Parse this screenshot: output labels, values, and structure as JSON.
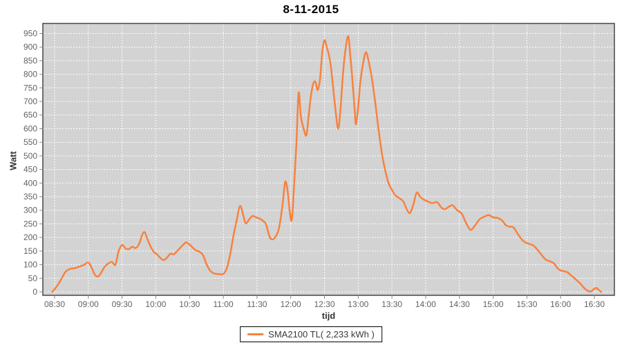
{
  "title": "8-11-2015",
  "colors": {
    "series": "#f8813e",
    "plot_background": "#d3d3d3",
    "gridline": "#ffffff",
    "plot_border": "#3a3a3a",
    "tick_mark": "#8a8a8a",
    "tick_label": "#616161",
    "axis_title": "#333333",
    "legend_border": "#000000",
    "legend_background": "#ffffff"
  },
  "chart_data": {
    "type": "line",
    "title": "8-11-2015",
    "xlabel": "tijd",
    "ylabel": "Watt",
    "grid": true,
    "legend_position": "bottom",
    "ylim": [
      0,
      950
    ],
    "y_axis": {
      "min": 0,
      "max": 950,
      "step": 50
    },
    "x_ticks": [
      "08:30",
      "09:00",
      "09:30",
      "10:00",
      "10:30",
      "11:00",
      "11:30",
      "12:00",
      "12:30",
      "13:00",
      "13:30",
      "14:00",
      "14:30",
      "15:00",
      "15:30",
      "16:00",
      "16:30"
    ],
    "series": [
      {
        "name": "SMA2100 TL( 2,233 kWh )",
        "color": "#f8813e",
        "points": [
          [
            "08:28",
            0
          ],
          [
            "08:31",
            15
          ],
          [
            "08:34",
            33
          ],
          [
            "08:37",
            55
          ],
          [
            "08:40",
            75
          ],
          [
            "08:44",
            85
          ],
          [
            "08:48",
            87
          ],
          [
            "08:52",
            93
          ],
          [
            "08:56",
            99
          ],
          [
            "09:00",
            108
          ],
          [
            "09:03",
            88
          ],
          [
            "09:06",
            62
          ],
          [
            "09:09",
            57
          ],
          [
            "09:12",
            75
          ],
          [
            "09:15",
            95
          ],
          [
            "09:18",
            105
          ],
          [
            "09:21",
            110
          ],
          [
            "09:24",
            100
          ],
          [
            "09:27",
            150
          ],
          [
            "09:30",
            172
          ],
          [
            "09:33",
            160
          ],
          [
            "09:36",
            157
          ],
          [
            "09:39",
            166
          ],
          [
            "09:42",
            161
          ],
          [
            "09:45",
            175
          ],
          [
            "09:48",
            210
          ],
          [
            "09:50",
            220
          ],
          [
            "09:52",
            200
          ],
          [
            "09:55",
            170
          ],
          [
            "09:58",
            148
          ],
          [
            "10:01",
            138
          ],
          [
            "10:04",
            125
          ],
          [
            "10:07",
            117
          ],
          [
            "10:10",
            126
          ],
          [
            "10:13",
            140
          ],
          [
            "10:16",
            138
          ],
          [
            "10:19",
            150
          ],
          [
            "10:22",
            163
          ],
          [
            "10:25",
            176
          ],
          [
            "10:27",
            182
          ],
          [
            "10:30",
            174
          ],
          [
            "10:33",
            162
          ],
          [
            "10:36",
            152
          ],
          [
            "10:39",
            147
          ],
          [
            "10:42",
            135
          ],
          [
            "10:45",
            103
          ],
          [
            "10:48",
            80
          ],
          [
            "10:51",
            69
          ],
          [
            "10:54",
            66
          ],
          [
            "10:57",
            65
          ],
          [
            "11:00",
            66
          ],
          [
            "11:03",
            85
          ],
          [
            "11:06",
            135
          ],
          [
            "11:09",
            205
          ],
          [
            "11:12",
            265
          ],
          [
            "11:15",
            316
          ],
          [
            "11:18",
            278
          ],
          [
            "11:20",
            252
          ],
          [
            "11:23",
            266
          ],
          [
            "11:26",
            279
          ],
          [
            "11:29",
            274
          ],
          [
            "11:32",
            270
          ],
          [
            "11:35",
            262
          ],
          [
            "11:38",
            248
          ],
          [
            "11:41",
            205
          ],
          [
            "11:43",
            193
          ],
          [
            "11:46",
            200
          ],
          [
            "11:49",
            225
          ],
          [
            "11:51",
            268
          ],
          [
            "11:53",
            330
          ],
          [
            "11:55",
            404
          ],
          [
            "11:57",
            378
          ],
          [
            "11:59",
            300
          ],
          [
            "12:01",
            265
          ],
          [
            "12:03",
            396
          ],
          [
            "12:05",
            540
          ],
          [
            "12:07",
            731
          ],
          [
            "12:09",
            645
          ],
          [
            "12:12",
            592
          ],
          [
            "12:14",
            577
          ],
          [
            "12:16",
            650
          ],
          [
            "12:18",
            722
          ],
          [
            "12:20",
            765
          ],
          [
            "12:22",
            772
          ],
          [
            "12:24",
            742
          ],
          [
            "12:26",
            780
          ],
          [
            "12:28",
            880
          ],
          [
            "12:30",
            925
          ],
          [
            "12:32",
            900
          ],
          [
            "12:34",
            870
          ],
          [
            "12:36",
            818
          ],
          [
            "12:39",
            700
          ],
          [
            "12:42",
            601
          ],
          [
            "12:44",
            660
          ],
          [
            "12:46",
            776
          ],
          [
            "12:48",
            868
          ],
          [
            "12:51",
            940
          ],
          [
            "12:53",
            868
          ],
          [
            "12:55",
            770
          ],
          [
            "12:57",
            662
          ],
          [
            "12:58",
            616
          ],
          [
            "13:00",
            680
          ],
          [
            "13:02",
            776
          ],
          [
            "13:05",
            855
          ],
          [
            "13:07",
            881
          ],
          [
            "13:09",
            852
          ],
          [
            "13:12",
            790
          ],
          [
            "13:15",
            700
          ],
          [
            "13:18",
            600
          ],
          [
            "13:21",
            510
          ],
          [
            "13:24",
            447
          ],
          [
            "13:27",
            400
          ],
          [
            "13:30",
            375
          ],
          [
            "13:33",
            355
          ],
          [
            "13:36",
            346
          ],
          [
            "13:40",
            333
          ],
          [
            "13:43",
            305
          ],
          [
            "13:46",
            290
          ],
          [
            "13:49",
            320
          ],
          [
            "13:52",
            365
          ],
          [
            "13:55",
            350
          ],
          [
            "13:58",
            340
          ],
          [
            "14:02",
            332
          ],
          [
            "14:06",
            326
          ],
          [
            "14:10",
            330
          ],
          [
            "14:14",
            310
          ],
          [
            "14:17",
            304
          ],
          [
            "14:21",
            314
          ],
          [
            "14:24",
            318
          ],
          [
            "14:28",
            300
          ],
          [
            "14:32",
            288
          ],
          [
            "14:36",
            253
          ],
          [
            "14:40",
            228
          ],
          [
            "14:44",
            245
          ],
          [
            "14:48",
            267
          ],
          [
            "14:52",
            276
          ],
          [
            "14:56",
            282
          ],
          [
            "15:00",
            274
          ],
          [
            "15:04",
            272
          ],
          [
            "15:08",
            262
          ],
          [
            "15:11",
            246
          ],
          [
            "15:14",
            240
          ],
          [
            "15:18",
            237
          ],
          [
            "15:22",
            212
          ],
          [
            "15:26",
            190
          ],
          [
            "15:29",
            181
          ],
          [
            "15:33",
            175
          ],
          [
            "15:36",
            170
          ],
          [
            "15:40",
            152
          ],
          [
            "15:44",
            131
          ],
          [
            "15:47",
            118
          ],
          [
            "15:50",
            113
          ],
          [
            "15:54",
            105
          ],
          [
            "15:57",
            88
          ],
          [
            "16:00",
            79
          ],
          [
            "16:03",
            76
          ],
          [
            "16:06",
            72
          ],
          [
            "16:09",
            62
          ],
          [
            "16:12",
            51
          ],
          [
            "16:15",
            40
          ],
          [
            "16:18",
            28
          ],
          [
            "16:21",
            14
          ],
          [
            "16:24",
            4
          ],
          [
            "16:27",
            2
          ],
          [
            "16:30",
            12
          ],
          [
            "16:32",
            14
          ],
          [
            "16:34",
            7
          ],
          [
            "16:36",
            0
          ]
        ]
      }
    ]
  }
}
